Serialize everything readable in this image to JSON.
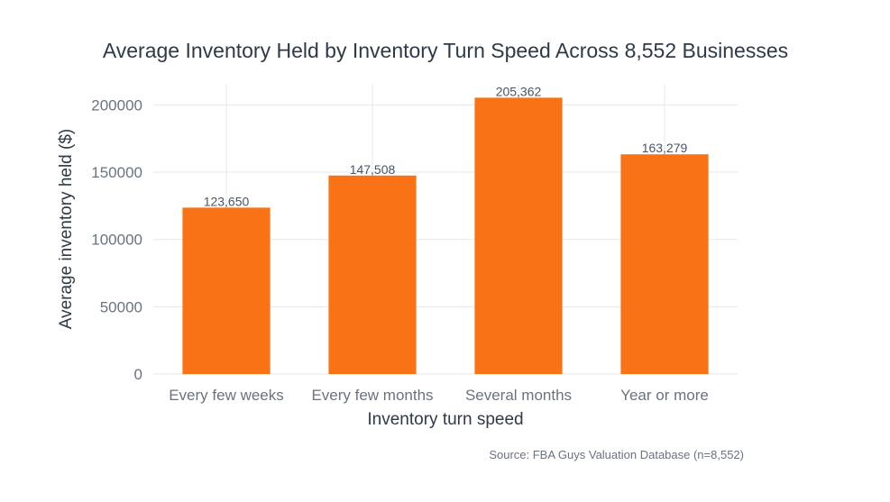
{
  "chart_data": {
    "type": "bar",
    "title": "Average Inventory Held by Inventory Turn Speed Across 8,552 Businesses",
    "xlabel": "Inventory turn speed",
    "ylabel": "Average inventory held ($)",
    "categories": [
      "Every few weeks",
      "Every few months",
      "Several months",
      "Year or more"
    ],
    "values": [
      123650,
      147508,
      205362,
      163279
    ],
    "data_labels": [
      "123,650",
      "147,508",
      "205,362",
      "163,279"
    ],
    "ylim": [
      0,
      215000
    ],
    "yticks": [
      0,
      50000,
      100000,
      150000,
      200000
    ],
    "ytick_labels": [
      "0",
      "50000",
      "100000",
      "150000",
      "200000"
    ],
    "grid": true,
    "bar_color": "#f97316",
    "source": "Source: FBA Guys Valuation Database (n=8,552)"
  }
}
